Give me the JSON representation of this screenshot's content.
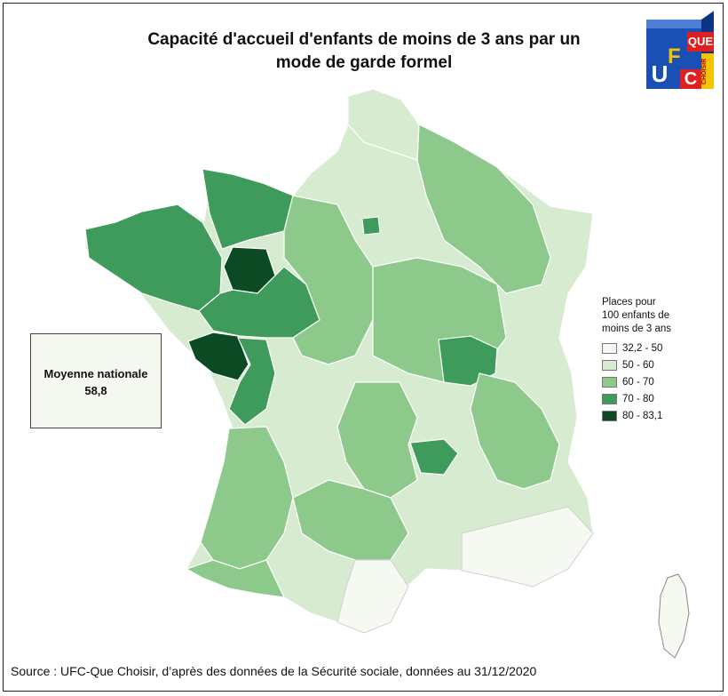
{
  "title_line1": "Capacité d'accueil d'enfants de moins de 3 ans par un",
  "title_line2": "mode de garde formel",
  "logo": {
    "u": "U",
    "f": "F",
    "c": "C",
    "que": "QUE",
    "choisir": "CHOISIR"
  },
  "average_box": {
    "label": "Moyenne nationale",
    "value": "58,8"
  },
  "legend": {
    "title_lines": [
      "Places pour",
      "100 enfants de",
      "moins de 3 ans"
    ],
    "items": [
      {
        "label": "32,2 - 50",
        "color": "#f5f9f2"
      },
      {
        "label": "50 - 60",
        "color": "#d6ebd0"
      },
      {
        "label": "60 - 70",
        "color": "#8cc98b"
      },
      {
        "label": "70 - 80",
        "color": "#3e9b5b"
      },
      {
        "label": "80 - 83,1",
        "color": "#0c4a24"
      }
    ]
  },
  "source": "Source : UFC-Que Choisir, d’après des données de la Sécurité sociale, données au 31/12/2020"
}
